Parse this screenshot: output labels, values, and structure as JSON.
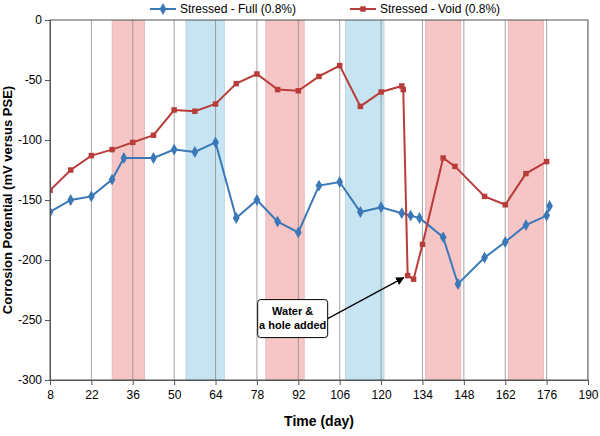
{
  "chart_data": {
    "type": "line",
    "x_label": "Time (day)",
    "y_label": "Corrosion Potential (mV versus PSE)",
    "xlim": [
      8,
      190
    ],
    "xticks": [
      8,
      22,
      36,
      50,
      64,
      78,
      92,
      106,
      120,
      134,
      148,
      162,
      176,
      190
    ],
    "ylim": [
      -300,
      0
    ],
    "yticks": [
      -300,
      -250,
      -200,
      -150,
      -100,
      -50,
      0
    ],
    "grid": "x",
    "legend": "top",
    "shaded_ranges": [
      {
        "start": 29,
        "end": 40,
        "color": "#f6c6c6"
      },
      {
        "start": 54,
        "end": 67,
        "color": "#c6e4f2"
      },
      {
        "start": 81,
        "end": 94,
        "color": "#f6c6c6"
      },
      {
        "start": 108,
        "end": 121,
        "color": "#c6e4f2"
      },
      {
        "start": 135,
        "end": 147,
        "color": "#f6c6c6"
      },
      {
        "start": 163,
        "end": 175,
        "color": "#f6c6c6"
      }
    ],
    "annotation": {
      "text": [
        "Water &",
        "a hole added"
      ],
      "x": 129,
      "y": -213
    },
    "series": [
      {
        "name": "Stressed - Full (0.8%)",
        "color": "#3a78b8",
        "marker": "diamond",
        "x": [
          8,
          15,
          22,
          29,
          33,
          43,
          50,
          57,
          64,
          71,
          78,
          85,
          92,
          99,
          106,
          113,
          120,
          127,
          130,
          133,
          141,
          146,
          155,
          162,
          169,
          176,
          177
        ],
        "values": [
          -160,
          -150,
          -147,
          -133,
          -115,
          -115,
          -108,
          -110,
          -102,
          -165,
          -150,
          -168,
          -177,
          -138,
          -135,
          -160,
          -156,
          -161,
          -163,
          -165,
          -181,
          -220,
          -198,
          -185,
          -171,
          -163,
          -155
        ]
      },
      {
        "name": "Stressed - Void (0.8%)",
        "color": "#b83c3a",
        "marker": "square",
        "x": [
          8,
          15,
          22,
          29,
          36,
          43,
          50,
          57,
          64,
          71,
          78,
          85,
          92,
          99,
          106,
          113,
          120,
          127,
          127.5,
          129,
          131,
          134,
          141,
          145,
          155,
          162,
          169,
          176
        ],
        "values": [
          -142,
          -125,
          -113,
          -108,
          -102,
          -96,
          -75,
          -76,
          -70,
          -53,
          -45,
          -58,
          -59,
          -47,
          -38,
          -72,
          -60,
          -55,
          -58,
          -213,
          -216,
          -187,
          -115,
          -122,
          -147,
          -154,
          -128,
          -118
        ]
      }
    ]
  }
}
